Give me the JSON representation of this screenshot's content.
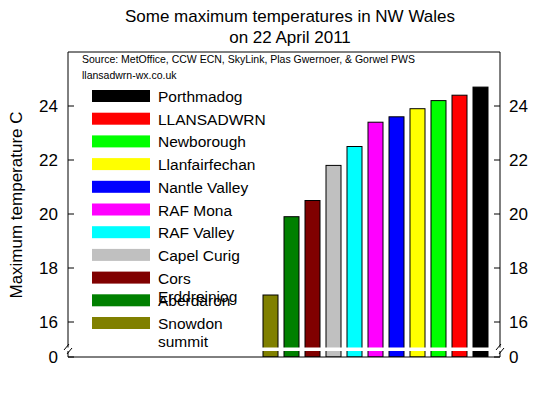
{
  "chart_data": {
    "type": "bar",
    "title": "Some maximum temperatures in NW Wales",
    "subtitle": "on 22 April 2011",
    "y_label": "Maximum temperature C",
    "annotations": [
      "Source: MetOffice, CCW ECN, SkyLink, Plas Gwernoer, & Gorwel PWS",
      "llansadwrn-wx.co.uk"
    ],
    "categories": [
      "Snowdon summit",
      "Aberdaron",
      "Cors Erddreiniog",
      "Capel Curig",
      "RAF Valley",
      "RAF Mona",
      "Nantle Valley",
      "Llanfairfechan",
      "Newborough",
      "LLANSADWRN",
      "Porthmadog"
    ],
    "values": [
      17.0,
      19.9,
      20.5,
      21.8,
      22.5,
      23.4,
      23.6,
      23.9,
      24.2,
      24.4,
      24.7
    ],
    "colors": [
      "#808000",
      "#008000",
      "#800000",
      "#c0c0c0",
      "#00ffff",
      "#ff00ff",
      "#0000ff",
      "#ffff00",
      "#00ff00",
      "#ff0000",
      "#000000"
    ],
    "ylim": [
      0,
      26
    ],
    "yticks": [
      0,
      16,
      18,
      20,
      22,
      24
    ],
    "legend": "left",
    "grid": false
  }
}
